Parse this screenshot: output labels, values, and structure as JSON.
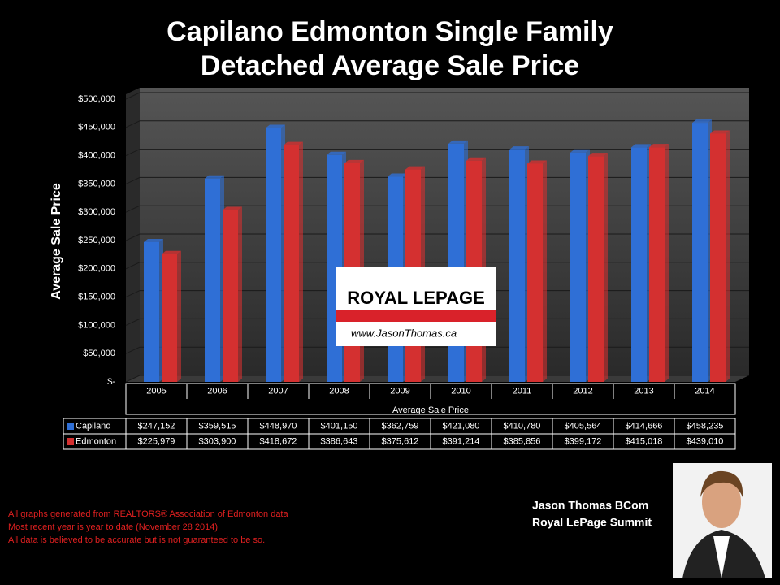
{
  "chart_data": {
    "type": "bar",
    "title": "Capilano Edmonton Single Family Detached Average Sale Price",
    "y_label": "Average Sale Price",
    "x_label": "Average Sale Price",
    "categories": [
      "2005",
      "2006",
      "2007",
      "2008",
      "2009",
      "2010",
      "2011",
      "2012",
      "2013",
      "2014"
    ],
    "series": [
      {
        "name": "Capilano",
        "color": "#2f6fd6",
        "values": [
          247152,
          359515,
          448970,
          401150,
          362759,
          421080,
          410780,
          405564,
          414666,
          458235
        ],
        "value_labels": [
          "$247,152",
          "$359,515",
          "$448,970",
          "$401,150",
          "$362,759",
          "$421,080",
          "$410,780",
          "$405,564",
          "$414,666",
          "$458,235"
        ]
      },
      {
        "name": "Edmonton",
        "color": "#d43030",
        "values": [
          225979,
          303900,
          418672,
          386643,
          375612,
          391214,
          385856,
          399172,
          415018,
          439010
        ],
        "value_labels": [
          "$225,979",
          "$303,900",
          "$418,672",
          "$386,643",
          "$375,612",
          "$391,214",
          "$385,856",
          "$399,172",
          "$415,018",
          "$439,010"
        ]
      }
    ],
    "ylim": [
      0,
      500000
    ],
    "yticks": [
      {
        "value": 0,
        "label": "$-"
      },
      {
        "value": 50000,
        "label": "$50,000"
      },
      {
        "value": 100000,
        "label": "$100,000"
      },
      {
        "value": 150000,
        "label": "$150,000"
      },
      {
        "value": 200000,
        "label": "$200,000"
      },
      {
        "value": 250000,
        "label": "$250,000"
      },
      {
        "value": 300000,
        "label": "$300,000"
      },
      {
        "value": 350000,
        "label": "$350,000"
      },
      {
        "value": 400000,
        "label": "$400,000"
      },
      {
        "value": 450000,
        "label": "$450,000"
      },
      {
        "value": 500000,
        "label": "$500,000"
      }
    ],
    "grid": true
  },
  "logo": {
    "brand": "ROYAL LEPAGE",
    "url": "www.JasonThomas.ca"
  },
  "footnotes": [
    "All graphs generated from REALTORS® Association of Edmonton data",
    "Most recent year is year to date (November 28 2014)",
    "All data is believed to be accurate but is not guaranteed to be so."
  ],
  "signature": [
    "Jason Thomas BCom",
    "Royal LePage Summit"
  ]
}
